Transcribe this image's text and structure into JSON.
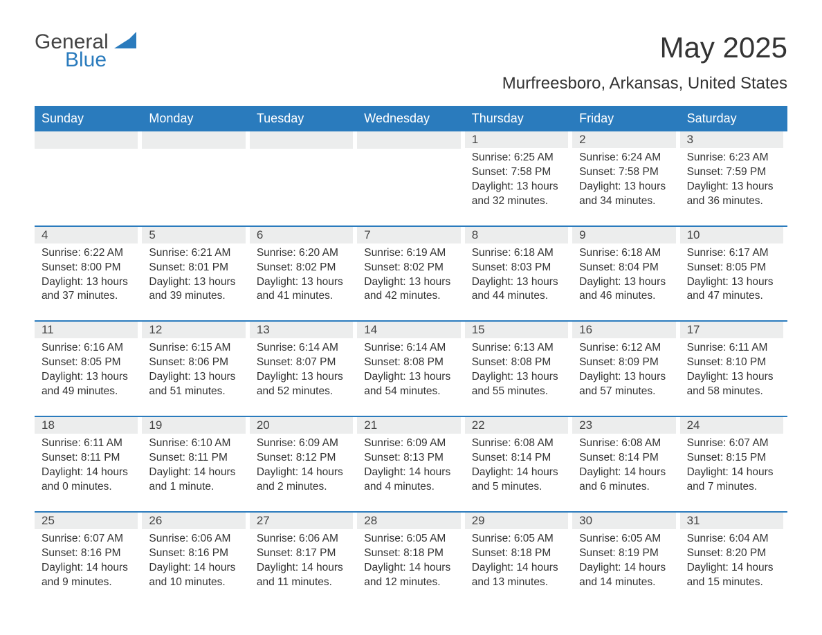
{
  "logo": {
    "text1": "General",
    "text2": "Blue",
    "mark_color": "#2a7bbd"
  },
  "title": "May 2025",
  "location": "Murfreesboro, Arkansas, United States",
  "colors": {
    "header_bg": "#2a7bbd",
    "header_text": "#ffffff",
    "daynum_bg": "#eceded",
    "text": "#333333",
    "accent": "#2a7bbd"
  },
  "typography": {
    "body_fontsize": 15.5,
    "header_fontsize": 18,
    "title_fontsize": 42,
    "location_fontsize": 24
  },
  "day_headers": [
    "Sunday",
    "Monday",
    "Tuesday",
    "Wednesday",
    "Thursday",
    "Friday",
    "Saturday"
  ],
  "weeks": [
    [
      null,
      null,
      null,
      null,
      {
        "n": "1",
        "sr": "Sunrise: 6:25 AM",
        "ss": "Sunset: 7:58 PM",
        "dl": "Daylight: 13 hours and 32 minutes."
      },
      {
        "n": "2",
        "sr": "Sunrise: 6:24 AM",
        "ss": "Sunset: 7:58 PM",
        "dl": "Daylight: 13 hours and 34 minutes."
      },
      {
        "n": "3",
        "sr": "Sunrise: 6:23 AM",
        "ss": "Sunset: 7:59 PM",
        "dl": "Daylight: 13 hours and 36 minutes."
      }
    ],
    [
      {
        "n": "4",
        "sr": "Sunrise: 6:22 AM",
        "ss": "Sunset: 8:00 PM",
        "dl": "Daylight: 13 hours and 37 minutes."
      },
      {
        "n": "5",
        "sr": "Sunrise: 6:21 AM",
        "ss": "Sunset: 8:01 PM",
        "dl": "Daylight: 13 hours and 39 minutes."
      },
      {
        "n": "6",
        "sr": "Sunrise: 6:20 AM",
        "ss": "Sunset: 8:02 PM",
        "dl": "Daylight: 13 hours and 41 minutes."
      },
      {
        "n": "7",
        "sr": "Sunrise: 6:19 AM",
        "ss": "Sunset: 8:02 PM",
        "dl": "Daylight: 13 hours and 42 minutes."
      },
      {
        "n": "8",
        "sr": "Sunrise: 6:18 AM",
        "ss": "Sunset: 8:03 PM",
        "dl": "Daylight: 13 hours and 44 minutes."
      },
      {
        "n": "9",
        "sr": "Sunrise: 6:18 AM",
        "ss": "Sunset: 8:04 PM",
        "dl": "Daylight: 13 hours and 46 minutes."
      },
      {
        "n": "10",
        "sr": "Sunrise: 6:17 AM",
        "ss": "Sunset: 8:05 PM",
        "dl": "Daylight: 13 hours and 47 minutes."
      }
    ],
    [
      {
        "n": "11",
        "sr": "Sunrise: 6:16 AM",
        "ss": "Sunset: 8:05 PM",
        "dl": "Daylight: 13 hours and 49 minutes."
      },
      {
        "n": "12",
        "sr": "Sunrise: 6:15 AM",
        "ss": "Sunset: 8:06 PM",
        "dl": "Daylight: 13 hours and 51 minutes."
      },
      {
        "n": "13",
        "sr": "Sunrise: 6:14 AM",
        "ss": "Sunset: 8:07 PM",
        "dl": "Daylight: 13 hours and 52 minutes."
      },
      {
        "n": "14",
        "sr": "Sunrise: 6:14 AM",
        "ss": "Sunset: 8:08 PM",
        "dl": "Daylight: 13 hours and 54 minutes."
      },
      {
        "n": "15",
        "sr": "Sunrise: 6:13 AM",
        "ss": "Sunset: 8:08 PM",
        "dl": "Daylight: 13 hours and 55 minutes."
      },
      {
        "n": "16",
        "sr": "Sunrise: 6:12 AM",
        "ss": "Sunset: 8:09 PM",
        "dl": "Daylight: 13 hours and 57 minutes."
      },
      {
        "n": "17",
        "sr": "Sunrise: 6:11 AM",
        "ss": "Sunset: 8:10 PM",
        "dl": "Daylight: 13 hours and 58 minutes."
      }
    ],
    [
      {
        "n": "18",
        "sr": "Sunrise: 6:11 AM",
        "ss": "Sunset: 8:11 PM",
        "dl": "Daylight: 14 hours and 0 minutes."
      },
      {
        "n": "19",
        "sr": "Sunrise: 6:10 AM",
        "ss": "Sunset: 8:11 PM",
        "dl": "Daylight: 14 hours and 1 minute."
      },
      {
        "n": "20",
        "sr": "Sunrise: 6:09 AM",
        "ss": "Sunset: 8:12 PM",
        "dl": "Daylight: 14 hours and 2 minutes."
      },
      {
        "n": "21",
        "sr": "Sunrise: 6:09 AM",
        "ss": "Sunset: 8:13 PM",
        "dl": "Daylight: 14 hours and 4 minutes."
      },
      {
        "n": "22",
        "sr": "Sunrise: 6:08 AM",
        "ss": "Sunset: 8:14 PM",
        "dl": "Daylight: 14 hours and 5 minutes."
      },
      {
        "n": "23",
        "sr": "Sunrise: 6:08 AM",
        "ss": "Sunset: 8:14 PM",
        "dl": "Daylight: 14 hours and 6 minutes."
      },
      {
        "n": "24",
        "sr": "Sunrise: 6:07 AM",
        "ss": "Sunset: 8:15 PM",
        "dl": "Daylight: 14 hours and 7 minutes."
      }
    ],
    [
      {
        "n": "25",
        "sr": "Sunrise: 6:07 AM",
        "ss": "Sunset: 8:16 PM",
        "dl": "Daylight: 14 hours and 9 minutes."
      },
      {
        "n": "26",
        "sr": "Sunrise: 6:06 AM",
        "ss": "Sunset: 8:16 PM",
        "dl": "Daylight: 14 hours and 10 minutes."
      },
      {
        "n": "27",
        "sr": "Sunrise: 6:06 AM",
        "ss": "Sunset: 8:17 PM",
        "dl": "Daylight: 14 hours and 11 minutes."
      },
      {
        "n": "28",
        "sr": "Sunrise: 6:05 AM",
        "ss": "Sunset: 8:18 PM",
        "dl": "Daylight: 14 hours and 12 minutes."
      },
      {
        "n": "29",
        "sr": "Sunrise: 6:05 AM",
        "ss": "Sunset: 8:18 PM",
        "dl": "Daylight: 14 hours and 13 minutes."
      },
      {
        "n": "30",
        "sr": "Sunrise: 6:05 AM",
        "ss": "Sunset: 8:19 PM",
        "dl": "Daylight: 14 hours and 14 minutes."
      },
      {
        "n": "31",
        "sr": "Sunrise: 6:04 AM",
        "ss": "Sunset: 8:20 PM",
        "dl": "Daylight: 14 hours and 15 minutes."
      }
    ]
  ]
}
